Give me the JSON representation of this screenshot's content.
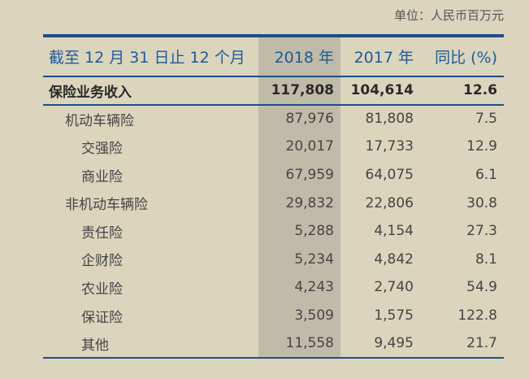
{
  "unit_note": "单位：人民币百万元",
  "table": {
    "headers": {
      "label": "截至 12 月 31 日止 12 个月",
      "y2018": "2018 年",
      "y2017": "2017 年",
      "yoy": "同比 (%)"
    },
    "rows": [
      {
        "label": "保险业务收入",
        "v2018": "117,808",
        "v2017": "104,614",
        "yoy": "12.6"
      },
      {
        "label": "机动车辆险",
        "v2018": "87,976",
        "v2017": "81,808",
        "yoy": "7.5"
      },
      {
        "label": "交强险",
        "v2018": "20,017",
        "v2017": "17,733",
        "yoy": "12.9"
      },
      {
        "label": "商业险",
        "v2018": "67,959",
        "v2017": "64,075",
        "yoy": "6.1"
      },
      {
        "label": "非机动车辆险",
        "v2018": "29,832",
        "v2017": "22,806",
        "yoy": "30.8"
      },
      {
        "label": "责任险",
        "v2018": "5,288",
        "v2017": "4,154",
        "yoy": "27.3"
      },
      {
        "label": "企财险",
        "v2018": "5,234",
        "v2017": "4,842",
        "yoy": "8.1"
      },
      {
        "label": "农业险",
        "v2018": "4,243",
        "v2017": "2,740",
        "yoy": "54.9"
      },
      {
        "label": "保证险",
        "v2018": "3,509",
        "v2017": "1,575",
        "yoy": "122.8"
      },
      {
        "label": "其他",
        "v2018": "11,558",
        "v2017": "9,495",
        "yoy": "21.7"
      }
    ]
  }
}
